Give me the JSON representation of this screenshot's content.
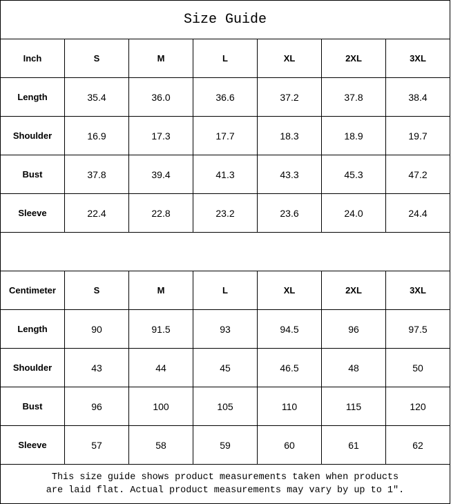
{
  "title": "Size Guide",
  "sizes": [
    "S",
    "M",
    "L",
    "XL",
    "2XL",
    "3XL"
  ],
  "inch": {
    "unit_label": "Inch",
    "rows": [
      {
        "label": "Length",
        "values": [
          "35.4",
          "36.0",
          "36.6",
          "37.2",
          "37.8",
          "38.4"
        ]
      },
      {
        "label": "Shoulder",
        "values": [
          "16.9",
          "17.3",
          "17.7",
          "18.3",
          "18.9",
          "19.7"
        ]
      },
      {
        "label": "Bust",
        "values": [
          "37.8",
          "39.4",
          "41.3",
          "43.3",
          "45.3",
          "47.2"
        ]
      },
      {
        "label": "Sleeve",
        "values": [
          "22.4",
          "22.8",
          "23.2",
          "23.6",
          "24.0",
          "24.4"
        ]
      }
    ]
  },
  "cm": {
    "unit_label": "Centimeter",
    "rows": [
      {
        "label": "Length",
        "values": [
          "90",
          "91.5",
          "93",
          "94.5",
          "96",
          "97.5"
        ]
      },
      {
        "label": "Shoulder",
        "values": [
          "43",
          "44",
          "45",
          "46.5",
          "48",
          "50"
        ]
      },
      {
        "label": "Bust",
        "values": [
          "96",
          "100",
          "105",
          "110",
          "115",
          "120"
        ]
      },
      {
        "label": "Sleeve",
        "values": [
          "57",
          "58",
          "59",
          "60",
          "61",
          "62"
        ]
      }
    ]
  },
  "footer": {
    "line1": "This size guide shows product measurements taken when products",
    "line2": "are laid flat. Actual product measurements may vary by up to 1″."
  }
}
